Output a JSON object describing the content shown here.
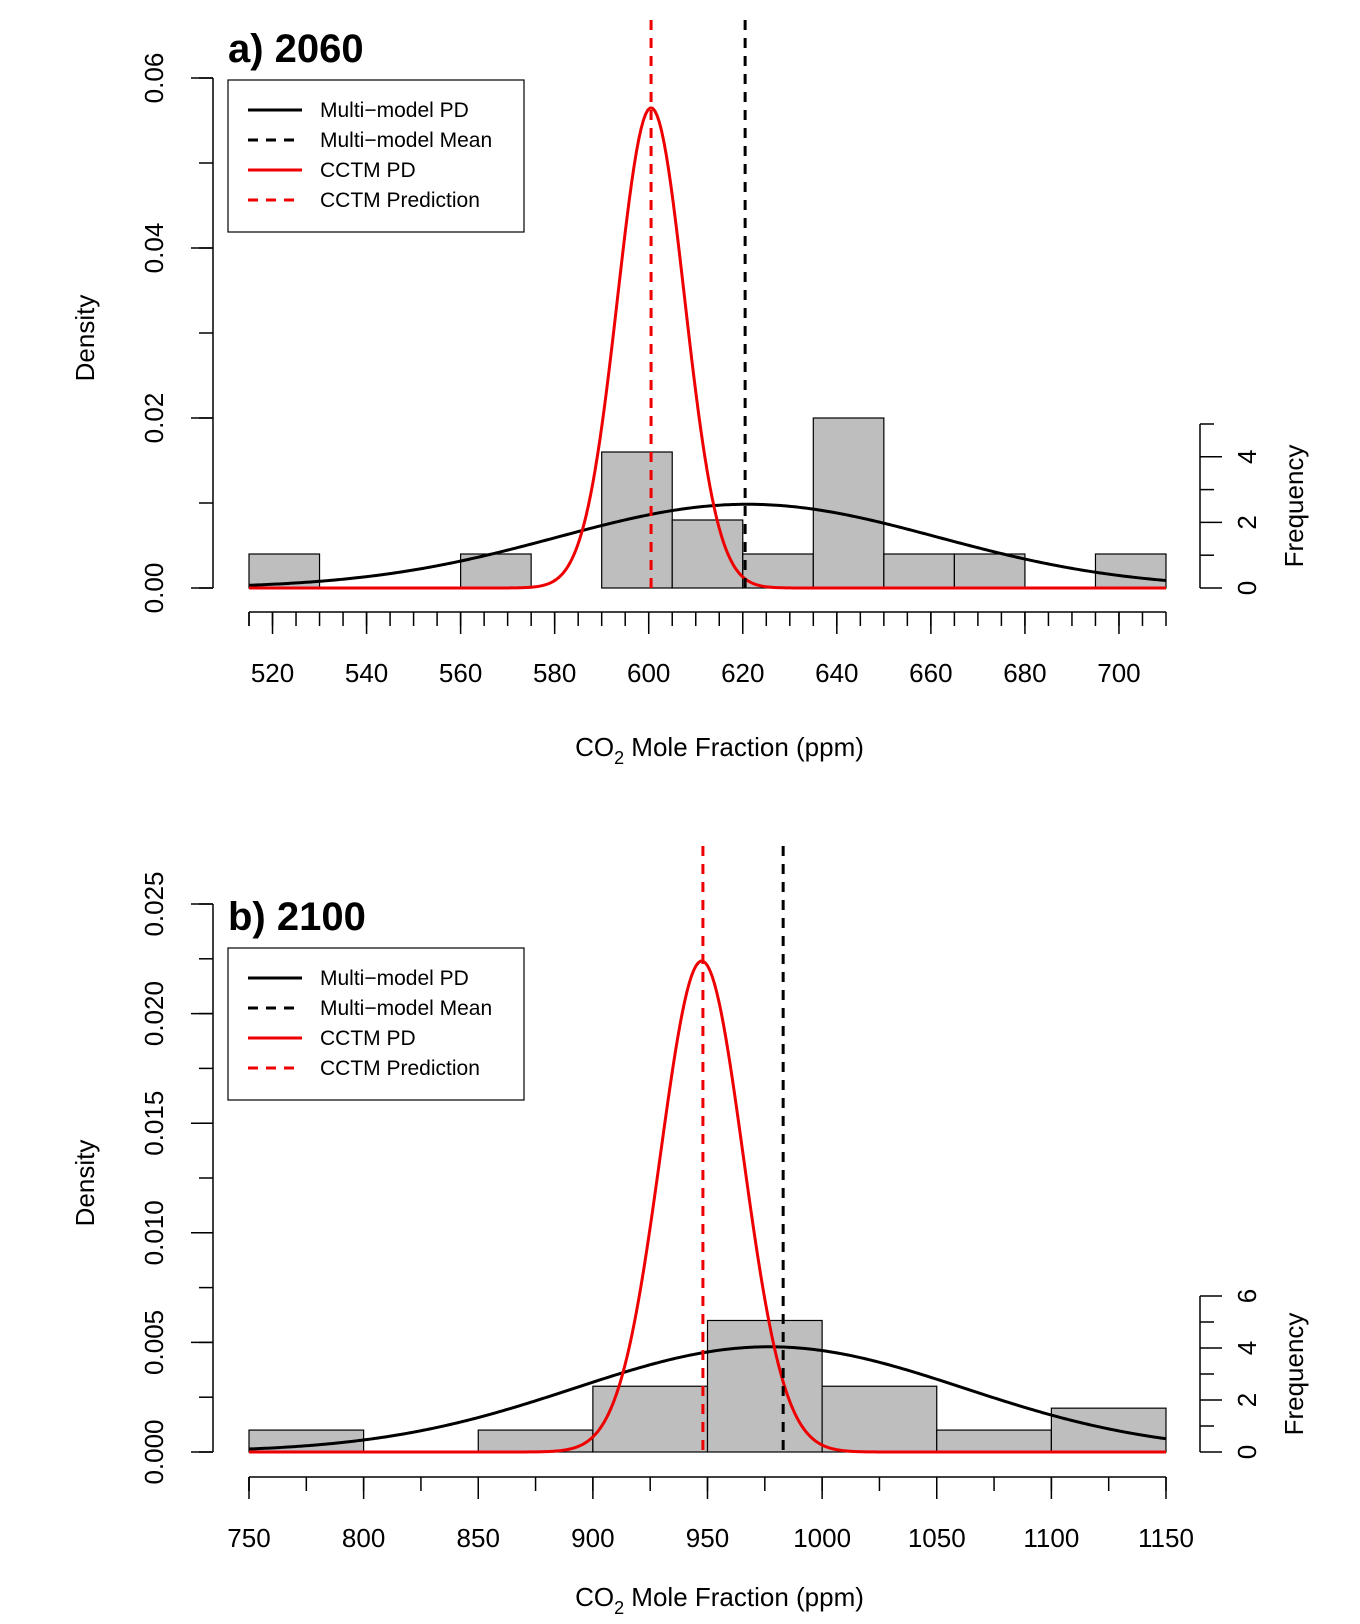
{
  "chart_data": [
    {
      "type": "histogram",
      "title": "a) 2060",
      "xlabel_main": "CO",
      "xlabel_sub": "2",
      "xlabel_rest": " Mole Fraction (ppm)",
      "ylabel": "Density",
      "y2label": "Frequency",
      "xlim": [
        515,
        710
      ],
      "xticks": [
        520,
        540,
        560,
        580,
        600,
        620,
        640,
        660,
        680,
        700
      ],
      "xticks_minor_step": 5,
      "ylim": [
        0,
        0.06
      ],
      "yticks": [
        0.0,
        0.02,
        0.04,
        0.06
      ],
      "yticks_labels": [
        "0.00",
        "0.02",
        "0.04",
        "0.06"
      ],
      "yticks_minor_step": 0.01,
      "y2ticks": [
        0,
        2,
        4
      ],
      "y2max": 5,
      "freq_per_density": 250,
      "bins": [
        {
          "x0": 515,
          "x1": 530,
          "count": 1
        },
        {
          "x0": 560,
          "x1": 575,
          "count": 1
        },
        {
          "x0": 590,
          "x1": 605,
          "count": 4
        },
        {
          "x0": 605,
          "x1": 620,
          "count": 2
        },
        {
          "x0": 620,
          "x1": 635,
          "count": 1
        },
        {
          "x0": 635,
          "x1": 650,
          "count": 5
        },
        {
          "x0": 650,
          "x1": 665,
          "count": 1
        },
        {
          "x0": 665,
          "x1": 680,
          "count": 1
        },
        {
          "x0": 695,
          "x1": 710,
          "count": 1
        }
      ],
      "multimodel_pd": {
        "mean": 621,
        "sd": 40.5,
        "peak": 0.00985
      },
      "cctm_pd": {
        "mean": 600.5,
        "sd": 7.1,
        "peak": 0.0565
      },
      "multimodel_mean": 620.5,
      "cctm_prediction": 600.5,
      "legend": [
        "Multi−model PD",
        "Multi−model Mean",
        "CCTM PD",
        "CCTM Prediction"
      ],
      "legend_position": "top-left",
      "colors": {
        "multimodel": "#000000",
        "cctm": "#ee0000",
        "bar_fill": "#bebebe"
      }
    },
    {
      "type": "histogram",
      "title": "b) 2100",
      "xlabel_main": "CO",
      "xlabel_sub": "2",
      "xlabel_rest": " Mole Fraction (ppm)",
      "ylabel": "Density",
      "y2label": "Frequency",
      "xlim": [
        750,
        1150
      ],
      "xticks": [
        750,
        800,
        850,
        900,
        950,
        1000,
        1050,
        1100,
        1150
      ],
      "xticks_minor_step": 25,
      "ylim": [
        0,
        0.025
      ],
      "yticks": [
        0.0,
        0.005,
        0.01,
        0.015,
        0.02,
        0.025
      ],
      "yticks_labels": [
        "0.000",
        "0.005",
        "0.010",
        "0.015",
        "0.020",
        "0.025"
      ],
      "yticks_minor_step": 0.0025,
      "y2ticks": [
        0,
        2,
        4,
        6
      ],
      "y2max": 6,
      "freq_per_density": 1000,
      "bins": [
        {
          "x0": 750,
          "x1": 800,
          "count": 1
        },
        {
          "x0": 850,
          "x1": 900,
          "count": 1
        },
        {
          "x0": 900,
          "x1": 950,
          "count": 3
        },
        {
          "x0": 950,
          "x1": 1000,
          "count": 6
        },
        {
          "x0": 1000,
          "x1": 1050,
          "count": 3
        },
        {
          "x0": 1050,
          "x1": 1100,
          "count": 1
        },
        {
          "x0": 1100,
          "x1": 1150,
          "count": 2
        }
      ],
      "multimodel_pd": {
        "mean": 977,
        "sd": 85,
        "peak": 0.0048
      },
      "cctm_pd": {
        "mean": 947.5,
        "sd": 18,
        "peak": 0.0224
      },
      "multimodel_mean": 983,
      "cctm_prediction": 948,
      "legend": [
        "Multi−model PD",
        "Multi−model Mean",
        "CCTM PD",
        "CCTM Prediction"
      ],
      "legend_position": "top-left",
      "colors": {
        "multimodel": "#000000",
        "cctm": "#ee0000",
        "bar_fill": "#bebebe"
      }
    }
  ]
}
